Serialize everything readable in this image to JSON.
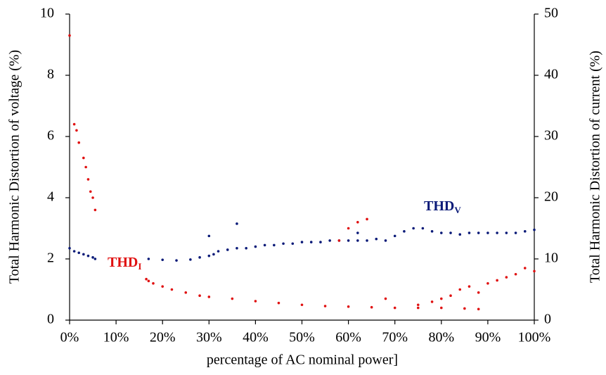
{
  "chart_data": {
    "type": "scatter",
    "x_label": "percentage of AC nominal power]",
    "y_label": "Total Harmonic Distortion of voltage (%)",
    "y2_label": "Total Harmonic Distortion of current (%)",
    "xlim": [
      0,
      100
    ],
    "xticks": [
      {
        "value": 0,
        "label": "0%"
      },
      {
        "value": 10,
        "label": "10%"
      },
      {
        "value": 20,
        "label": "20%"
      },
      {
        "value": 30,
        "label": "30%"
      },
      {
        "value": 40,
        "label": "40%"
      },
      {
        "value": 50,
        "label": "50%"
      },
      {
        "value": 60,
        "label": "60%"
      },
      {
        "value": 70,
        "label": "70%"
      },
      {
        "value": 80,
        "label": "80%"
      },
      {
        "value": 90,
        "label": "90%"
      },
      {
        "value": 100,
        "label": "100%"
      }
    ],
    "ylim": [
      0,
      10
    ],
    "yticks": [
      0,
      2,
      4,
      6,
      8,
      10
    ],
    "y2lim": [
      0,
      50
    ],
    "y2ticks": [
      0,
      10,
      20,
      30,
      40,
      50
    ],
    "series": [
      {
        "label": "THD",
        "label_sub": "V",
        "color": "#0a1a78",
        "axis": "y",
        "x": [
          0,
          1,
          2,
          3,
          4,
          5,
          5.5,
          17,
          20,
          23,
          26,
          28,
          30,
          31,
          32,
          34,
          36,
          38,
          40,
          42,
          44,
          46,
          48,
          50,
          52,
          54,
          56,
          58,
          60,
          62,
          64,
          66,
          68,
          70,
          72,
          74,
          76,
          78,
          80,
          82,
          84,
          86,
          88,
          90,
          92,
          94,
          96,
          98,
          100,
          36,
          30,
          62
        ],
        "values": [
          2.35,
          2.25,
          2.2,
          2.15,
          2.1,
          2.05,
          2.0,
          2.0,
          1.97,
          1.95,
          1.98,
          2.05,
          2.1,
          2.15,
          2.25,
          2.3,
          2.35,
          2.35,
          2.4,
          2.45,
          2.45,
          2.5,
          2.5,
          2.55,
          2.55,
          2.55,
          2.6,
          2.6,
          2.6,
          2.6,
          2.6,
          2.65,
          2.6,
          2.75,
          2.9,
          3.0,
          3.0,
          2.9,
          2.85,
          2.85,
          2.8,
          2.85,
          2.85,
          2.85,
          2.85,
          2.85,
          2.85,
          2.9,
          2.95,
          3.15,
          2.75,
          2.85
        ]
      },
      {
        "label": "THD",
        "label_sub": "I",
        "color": "#e01010",
        "axis": "y2",
        "x": [
          0,
          1,
          1.5,
          2,
          3,
          3.5,
          4,
          4.5,
          5,
          5.5,
          16.5,
          17,
          18,
          20,
          22,
          25,
          28,
          30,
          35,
          40,
          45,
          50,
          55,
          60,
          65,
          70,
          75,
          80,
          85,
          88,
          75,
          78,
          80,
          82,
          84,
          86,
          88,
          90,
          92,
          94,
          96,
          98,
          100,
          58,
          60,
          62,
          64,
          68
        ],
        "values": [
          46.5,
          32,
          31,
          29,
          26.5,
          25,
          23,
          21,
          20,
          18,
          6.7,
          6.4,
          6,
          5.5,
          5,
          4.5,
          4,
          3.8,
          3.5,
          3.1,
          2.8,
          2.5,
          2.3,
          2.2,
          2.1,
          2,
          2,
          2,
          1.9,
          1.8,
          2.5,
          3,
          3.5,
          4,
          5,
          5.5,
          4.5,
          6,
          6.5,
          7,
          7.5,
          8.5,
          8,
          13,
          15,
          16,
          16.5,
          3.5
        ]
      }
    ]
  }
}
